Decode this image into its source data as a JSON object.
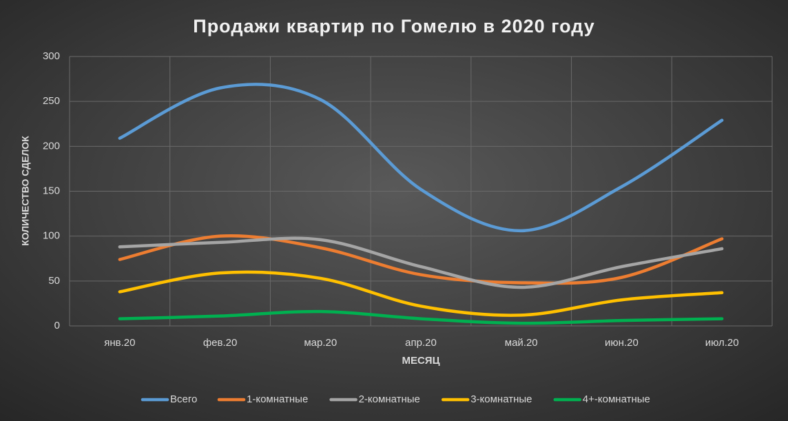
{
  "chart_data": {
    "type": "line",
    "title": "Продажи квартир по Гомелю в 2020 году",
    "x_label": "МЕСЯЦ",
    "y_label": "КОЛИЧЕСТВО СДЕЛОК",
    "categories": [
      "янв.20",
      "фев.20",
      "мар.20",
      "апр.20",
      "май.20",
      "июн.20",
      "июл.20"
    ],
    "series": [
      {
        "name": "Всего",
        "color": "#5b9bd5",
        "values": [
          209,
          265,
          252,
          152,
          106,
          155,
          229
        ]
      },
      {
        "name": "1-комнатные",
        "color": "#ed7d31",
        "values": [
          74,
          100,
          87,
          57,
          48,
          54,
          97
        ]
      },
      {
        "name": "2-комнатные",
        "color": "#a5a5a5",
        "values": [
          88,
          93,
          96,
          66,
          43,
          66,
          86
        ]
      },
      {
        "name": "3-комнатные",
        "color": "#ffc000",
        "values": [
          38,
          59,
          53,
          22,
          12,
          29,
          37
        ]
      },
      {
        "name": "4+-комнатные",
        "color": "#00b050",
        "values": [
          8,
          11,
          16,
          8,
          3,
          6,
          8
        ]
      }
    ],
    "ylim": [
      0,
      300
    ],
    "yticks": [
      0,
      50,
      100,
      150,
      200,
      250,
      300
    ],
    "grid": true,
    "smooth": true,
    "legend": "bottom"
  }
}
